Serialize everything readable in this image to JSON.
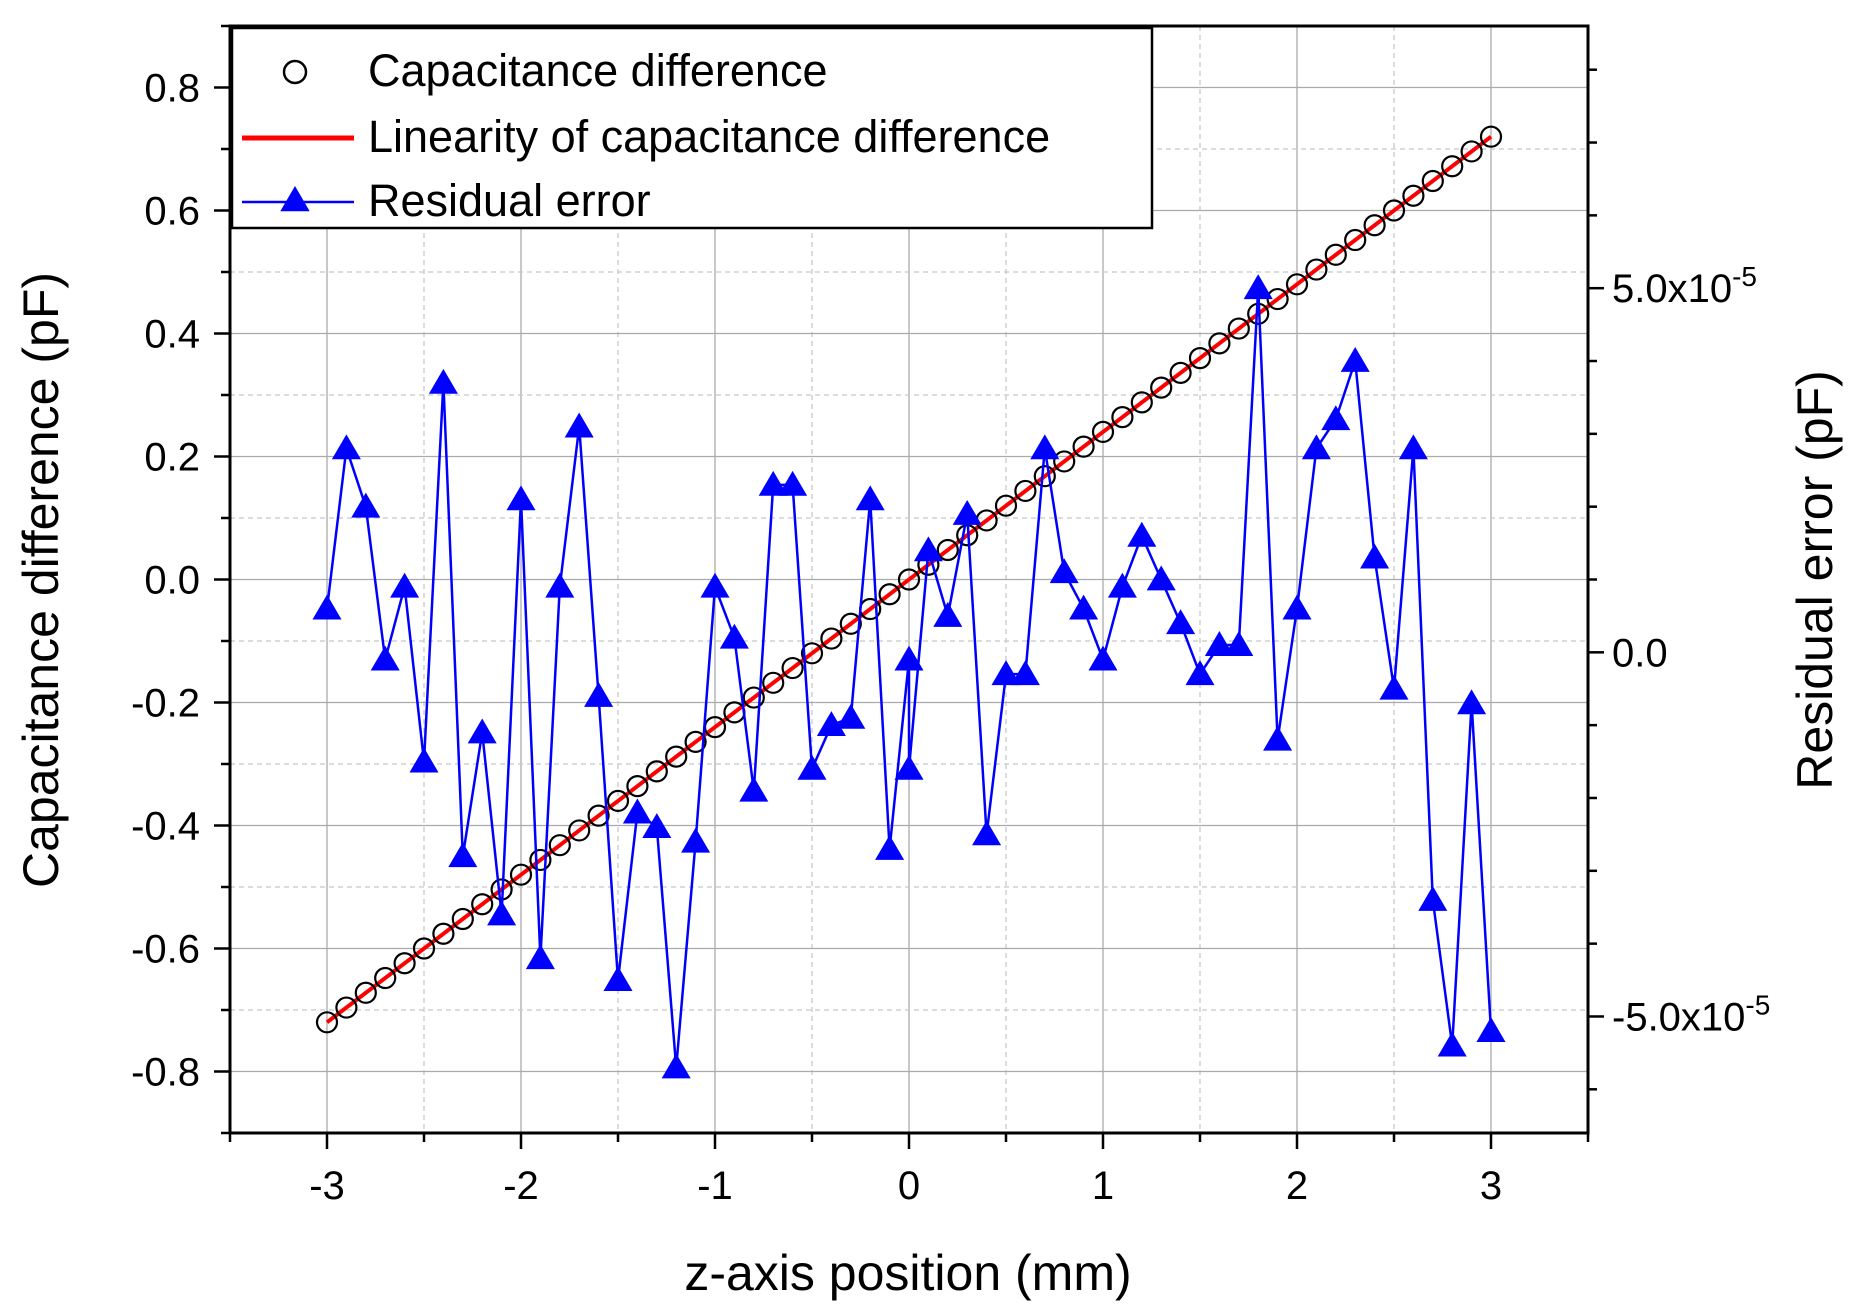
{
  "chart_data": {
    "type": "line",
    "xlabel": "z-axis position (mm)",
    "ylabel_left": "Capacitance difference (pF)",
    "ylabel_right": "Residual error (pF)",
    "xlim": [
      -3.5,
      3.5
    ],
    "ylim_left": [
      -0.9,
      0.9
    ],
    "ylim_right": [
      -6.6e-05,
      8.6e-05
    ],
    "x_ticks": [
      -3,
      -2,
      -1,
      0,
      1,
      2,
      3
    ],
    "x_tick_labels": [
      "-3",
      "-2",
      "-1",
      "0",
      "1",
      "2",
      "3"
    ],
    "y_left_ticks": [
      -0.8,
      -0.6,
      -0.4,
      -0.2,
      0.0,
      0.2,
      0.4,
      0.6,
      0.8
    ],
    "y_left_tick_labels": [
      "-0.8",
      "-0.6",
      "-0.4",
      "-0.2",
      "0.0",
      "0.2",
      "0.4",
      "0.6",
      "0.8"
    ],
    "y_right_ticks": [
      -5e-05,
      0,
      5e-05
    ],
    "y_right_tick_labels": [
      {
        "mantissa": "-5.0x10",
        "exponent": "-5"
      },
      {
        "mantissa": "0.0",
        "exponent": ""
      },
      {
        "mantissa": "5.0x10",
        "exponent": "-5"
      }
    ],
    "grid": true,
    "legend_position": "top-left",
    "legend": [
      {
        "label": "Capacitance difference",
        "marker": "circle-open",
        "color": "#000000"
      },
      {
        "label": "Linearity of capacitance difference",
        "marker": "line",
        "color": "#ff0000"
      },
      {
        "label": "Residual error",
        "marker": "triangle-filled-line",
        "color": "#0000ff"
      }
    ],
    "series": [
      {
        "name": "Capacitance difference",
        "axis": "left",
        "x_start": -3.0,
        "x_step": 0.1,
        "n": 61,
        "y_start": -0.72,
        "y_slope": 0.24
      },
      {
        "name": "Linearity of capacitance difference",
        "axis": "left",
        "x": [
          -3.0,
          3.0
        ],
        "y": [
          -0.72,
          0.72
        ]
      },
      {
        "name": "Residual error",
        "axis": "right",
        "x": [
          -3.0,
          -2.9,
          -2.8,
          -2.7,
          -2.6,
          -2.5,
          -2.4,
          -2.3,
          -2.2,
          -2.1,
          -2.0,
          -1.9,
          -1.8,
          -1.7,
          -1.6,
          -1.5,
          -1.4,
          -1.3,
          -1.2,
          -1.1,
          -1.0,
          -0.9,
          -0.8,
          -0.7,
          -0.6,
          -0.5,
          -0.4,
          -0.3,
          -0.2,
          -0.1,
          0.0,
          0.0,
          0.1,
          0.2,
          0.3,
          0.4,
          0.5,
          0.6,
          0.7,
          0.8,
          0.9,
          1.0,
          1.1,
          1.2,
          1.3,
          1.4,
          1.5,
          1.6,
          1.7,
          1.8,
          1.9,
          2.0,
          2.1,
          2.2,
          2.3,
          2.4,
          2.5,
          2.6,
          2.7,
          2.8,
          2.9,
          3.0
        ],
        "y": [
          6e-06,
          2.8e-05,
          2e-05,
          -1e-06,
          9e-06,
          -1.5e-05,
          3.7e-05,
          -2.8e-05,
          -1.1e-05,
          -3.6e-05,
          2.1e-05,
          -4.2e-05,
          9e-06,
          3.1e-05,
          -6e-06,
          -4.5e-05,
          -2.2e-05,
          -2.4e-05,
          -5.7e-05,
          -2.6e-05,
          9e-06,
          2e-06,
          -1.9e-05,
          2.3e-05,
          2.3e-05,
          -1.6e-05,
          -1e-05,
          -9e-06,
          2.1e-05,
          -2.7e-05,
          -1e-06,
          -1.6e-05,
          1.4e-05,
          5e-06,
          1.9e-05,
          -2.5e-05,
          -3e-06,
          -3e-06,
          2.8e-05,
          1.1e-05,
          6e-06,
          -1e-06,
          9e-06,
          1.6e-05,
          1e-05,
          4e-06,
          -3e-06,
          1e-06,
          1e-06,
          5e-05,
          -1.2e-05,
          6e-06,
          2.8e-05,
          3.2e-05,
          4e-05,
          1.3e-05,
          -5e-06,
          2.8e-05,
          -3.4e-05,
          -5.4e-05,
          -7e-06,
          -5.2e-05
        ]
      }
    ]
  }
}
